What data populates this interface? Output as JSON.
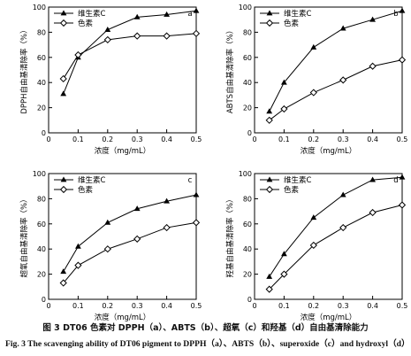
{
  "figure": {
    "caption_zh": "图 3   DT06 色素对 DPPH（a）、ABTS（b）、超氧（c）和羟基（d）自由基清除能力",
    "caption_en": "Fig. 3   The scavenging ability of DT06 pigment to DPPH（a）、ABTS（b）、superoxide（c）and hydroxyl（d）"
  },
  "chart_data": [
    {
      "type": "line",
      "panel_label": "a",
      "xlabel": "浓度（mg/mL）",
      "ylabel": "DPPH自由基清除率（%）",
      "xlim": [
        0,
        0.5
      ],
      "ylim": [
        0,
        100
      ],
      "xticks": [
        0,
        0.1,
        0.2,
        0.3,
        0.4,
        0.5
      ],
      "yticks": [
        0,
        20,
        40,
        60,
        80,
        100
      ],
      "x": [
        0.05,
        0.1,
        0.2,
        0.3,
        0.4,
        0.5
      ],
      "legend_position": "top-left",
      "series": [
        {
          "name": "维生素C",
          "marker": "filled-triangle",
          "values": [
            31,
            60,
            82,
            92,
            94,
            97
          ]
        },
        {
          "name": "色素",
          "marker": "open-diamond",
          "values": [
            43,
            62,
            74,
            77,
            77,
            79
          ]
        }
      ]
    },
    {
      "type": "line",
      "panel_label": "b",
      "xlabel": "浓度（mg/mL）",
      "ylabel": "ABTS自由基清除率（%）",
      "xlim": [
        0,
        0.5
      ],
      "ylim": [
        0,
        100
      ],
      "xticks": [
        0,
        0.1,
        0.2,
        0.3,
        0.4,
        0.5
      ],
      "yticks": [
        0,
        20,
        40,
        60,
        80,
        100
      ],
      "x": [
        0.05,
        0.1,
        0.2,
        0.3,
        0.4,
        0.5
      ],
      "legend_position": "top-left",
      "series": [
        {
          "name": "维生素C",
          "marker": "filled-triangle",
          "values": [
            17,
            40,
            68,
            83,
            90,
            97
          ]
        },
        {
          "name": "色素",
          "marker": "open-diamond",
          "values": [
            10,
            19,
            32,
            42,
            53,
            58
          ]
        }
      ]
    },
    {
      "type": "line",
      "panel_label": "c",
      "xlabel": "浓度（mg/mL）",
      "ylabel": "超氧自由基清除率（%）",
      "xlim": [
        0,
        0.5
      ],
      "ylim": [
        0,
        100
      ],
      "xticks": [
        0,
        0.1,
        0.2,
        0.3,
        0.4,
        0.5
      ],
      "yticks": [
        0,
        20,
        40,
        60,
        80,
        100
      ],
      "x": [
        0.05,
        0.1,
        0.2,
        0.3,
        0.4,
        0.5
      ],
      "legend_position": "top-left",
      "series": [
        {
          "name": "维生素C",
          "marker": "filled-triangle",
          "values": [
            22,
            42,
            61,
            72,
            78,
            83
          ]
        },
        {
          "name": "色素",
          "marker": "open-diamond",
          "values": [
            13,
            27,
            40,
            48,
            57,
            61
          ]
        }
      ]
    },
    {
      "type": "line",
      "panel_label": "d",
      "xlabel": "浓度（mg/mL）",
      "ylabel": "羟基自由基清除率（%）",
      "xlim": [
        0,
        0.5
      ],
      "ylim": [
        0,
        100
      ],
      "xticks": [
        0,
        0.1,
        0.2,
        0.3,
        0.4,
        0.5
      ],
      "yticks": [
        0,
        20,
        40,
        60,
        80,
        100
      ],
      "x": [
        0.05,
        0.1,
        0.2,
        0.3,
        0.4,
        0.5
      ],
      "legend_position": "top-left",
      "series": [
        {
          "name": "维生素C",
          "marker": "filled-triangle",
          "values": [
            18,
            36,
            65,
            83,
            95,
            97
          ]
        },
        {
          "name": "色素",
          "marker": "open-diamond",
          "values": [
            8,
            20,
            43,
            57,
            69,
            75
          ]
        }
      ]
    }
  ]
}
